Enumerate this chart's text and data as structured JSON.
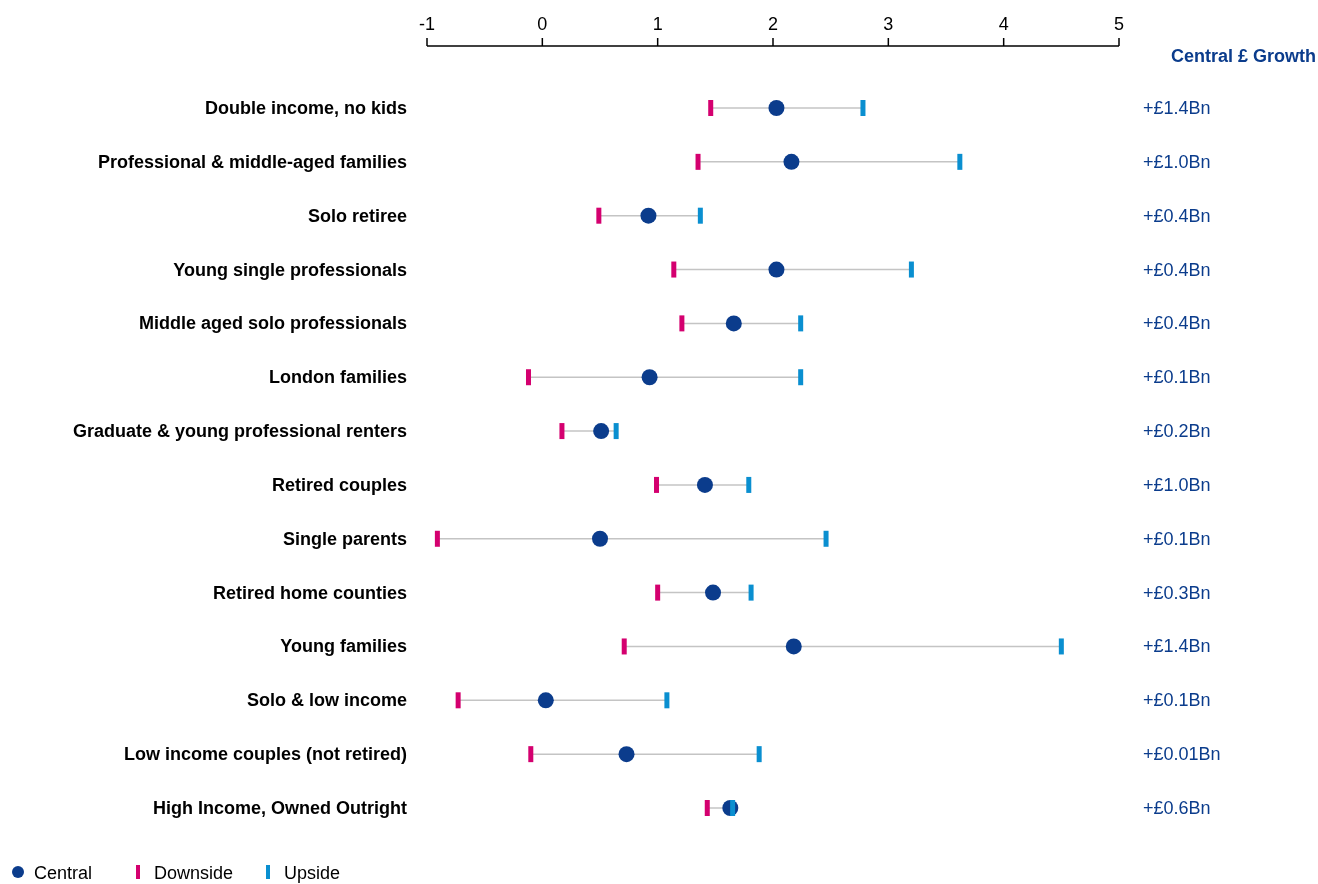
{
  "chart_data": {
    "type": "scatter",
    "orientation": "horizontal",
    "y2label": "Central £ Growth",
    "categories": [
      "Double income, no kids",
      "Professional & middle-aged families",
      "Solo retiree",
      "Young single professionals",
      "Middle aged solo professionals",
      "London families",
      "Graduate & young professional renters",
      "Retired couples",
      "Single parents",
      "Retired home counties",
      "Young families",
      "Solo & low income",
      "Low income couples (not retired)",
      "High Income, Owned Outright"
    ],
    "y2_categories": [
      "+£1.4Bn",
      "+£1.0Bn",
      "+£0.4Bn",
      "+£0.4Bn",
      "+£0.4Bn",
      "+£0.1Bn",
      "+£0.2Bn",
      "+£1.0Bn",
      "+£0.1Bn",
      "+£0.3Bn",
      "+£1.4Bn",
      "+£0.1Bn",
      "+£0.01Bn",
      "+£0.6Bn"
    ],
    "series": [
      {
        "name": "Downside",
        "color": "#d4006f",
        "marker": "square",
        "values": [
          1.46,
          1.35,
          0.49,
          1.14,
          1.21,
          -0.12,
          0.17,
          0.99,
          -0.91,
          1.0,
          0.71,
          -0.73,
          -0.1,
          1.43
        ]
      },
      {
        "name": "Central",
        "color": "#0b3c8c",
        "marker": "circle",
        "values": [
          2.03,
          2.16,
          0.92,
          2.03,
          1.66,
          0.93,
          0.51,
          1.41,
          0.5,
          1.48,
          2.18,
          0.03,
          0.73,
          1.63
        ]
      },
      {
        "name": "Upside",
        "color": "#0a8fd0",
        "marker": "square",
        "values": [
          2.78,
          3.62,
          1.37,
          3.2,
          2.24,
          2.24,
          0.64,
          1.79,
          2.46,
          1.81,
          4.5,
          1.08,
          1.88,
          1.65
        ]
      }
    ],
    "xlim": [
      -1,
      5
    ],
    "xticks": [
      -1,
      0,
      1,
      2,
      3,
      4,
      5
    ],
    "grid": false,
    "legend": "bottom left"
  }
}
